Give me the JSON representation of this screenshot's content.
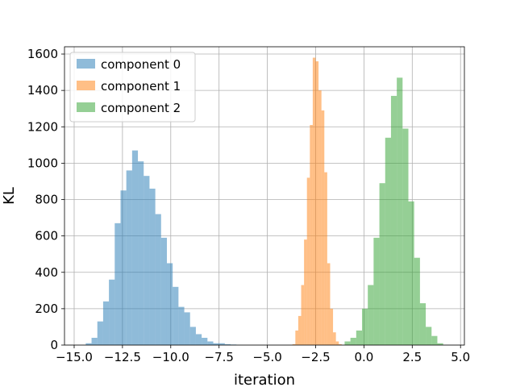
{
  "chart_data": {
    "type": "bar",
    "title": "",
    "xlabel": "iteration",
    "ylabel": "KL",
    "xlim": [
      -15.5,
      5.2
    ],
    "ylim": [
      0,
      1640
    ],
    "xticks": [
      -15.0,
      -12.5,
      -10.0,
      -7.5,
      -5.0,
      -2.5,
      0.0,
      2.5,
      5.0
    ],
    "xtick_labels": [
      "−15.0",
      "−12.5",
      "−10.0",
      "−7.5",
      "−5.0",
      "−2.5",
      "0.0",
      "2.5",
      "5.0"
    ],
    "yticks": [
      0,
      200,
      400,
      600,
      800,
      1000,
      1200,
      1400,
      1600
    ],
    "ytick_labels": [
      "0",
      "200",
      "400",
      "600",
      "800",
      "1000",
      "1200",
      "1400",
      "1600"
    ],
    "grid": true,
    "legend_position": "top-left",
    "series": [
      {
        "name": "component 0",
        "color": "#1f77b4",
        "bin_edges": [
          -14.4,
          -14.1,
          -13.8,
          -13.5,
          -13.2,
          -12.9,
          -12.6,
          -12.3,
          -12.0,
          -11.7,
          -11.4,
          -11.1,
          -10.8,
          -10.5,
          -10.2,
          -9.9,
          -9.6,
          -9.3,
          -9.0,
          -8.7,
          -8.4,
          -8.1,
          -7.8,
          -7.5,
          -7.2,
          -6.9,
          -6.6,
          -6.3
        ],
        "counts": [
          10,
          40,
          130,
          240,
          360,
          670,
          850,
          960,
          1070,
          1010,
          930,
          860,
          720,
          590,
          450,
          320,
          210,
          180,
          100,
          60,
          40,
          20,
          10,
          10,
          5,
          3,
          1
        ]
      },
      {
        "name": "component 1",
        "color": "#ff7f0e",
        "bin_edges": [
          -3.7,
          -3.55,
          -3.4,
          -3.25,
          -3.1,
          -2.95,
          -2.8,
          -2.65,
          -2.5,
          -2.35,
          -2.2,
          -2.05,
          -1.9,
          -1.75,
          -1.6,
          -1.45,
          -1.3,
          -1.15
        ],
        "counts": [
          5,
          80,
          160,
          330,
          580,
          920,
          1210,
          1580,
          1560,
          1400,
          1290,
          950,
          450,
          200,
          70,
          20,
          5
        ]
      },
      {
        "name": "component 2",
        "color": "#2ca02c",
        "bin_edges": [
          -1.0,
          -0.7,
          -0.4,
          -0.1,
          0.2,
          0.5,
          0.8,
          1.1,
          1.4,
          1.7,
          2.0,
          2.3,
          2.6,
          2.9,
          3.2,
          3.5,
          3.8,
          4.1
        ],
        "counts": [
          20,
          40,
          80,
          200,
          330,
          590,
          890,
          1140,
          1370,
          1470,
          1190,
          790,
          480,
          230,
          100,
          50,
          10
        ]
      }
    ]
  }
}
